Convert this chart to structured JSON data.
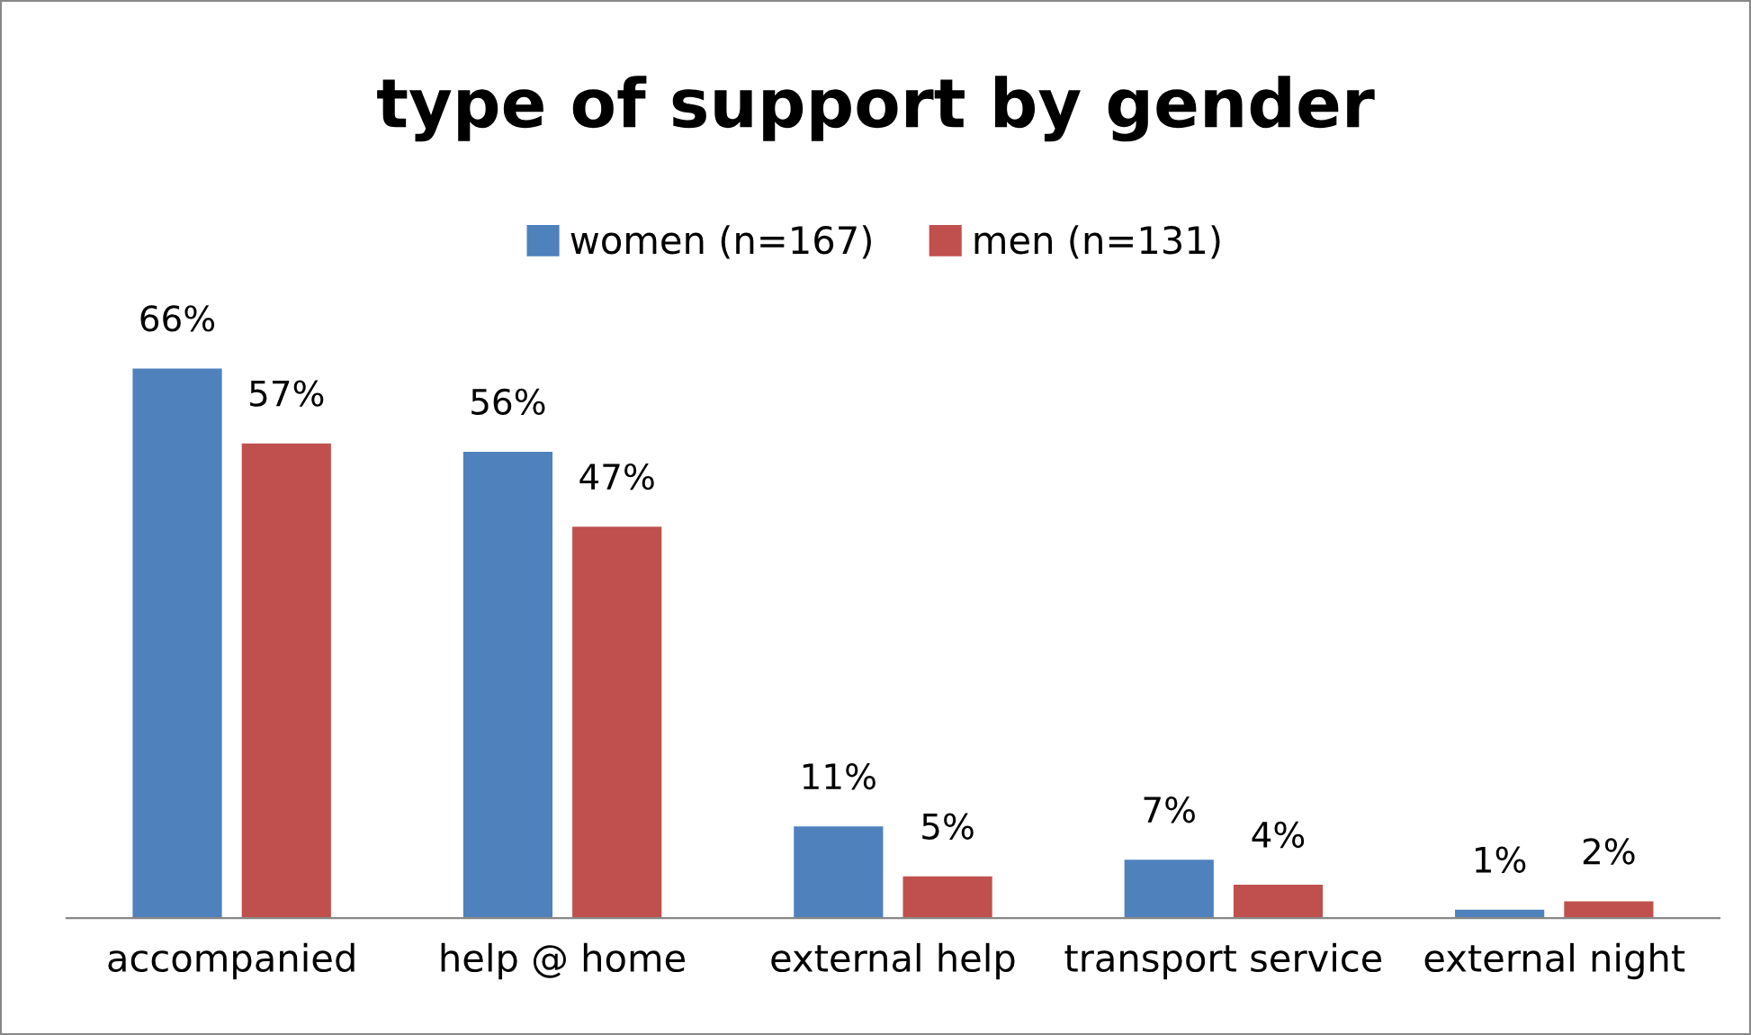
{
  "chart_data": {
    "type": "bar",
    "title": "type of support by gender",
    "categories": [
      "accompanied",
      "help @ home",
      "external help",
      "transport service",
      "external night"
    ],
    "series": [
      {
        "name": "women (n=167)",
        "color": "#4f81bd",
        "values": [
          66,
          56,
          11,
          7,
          1
        ],
        "value_labels": [
          "66%",
          "56%",
          "11%",
          "7%",
          "1%"
        ]
      },
      {
        "name": "men (n=131)",
        "color": "#c0504d",
        "values": [
          57,
          47,
          5,
          4,
          2
        ],
        "value_labels": [
          "57%",
          "47%",
          "5%",
          "4%",
          "2%"
        ]
      }
    ],
    "legend": "top",
    "grid": false
  }
}
